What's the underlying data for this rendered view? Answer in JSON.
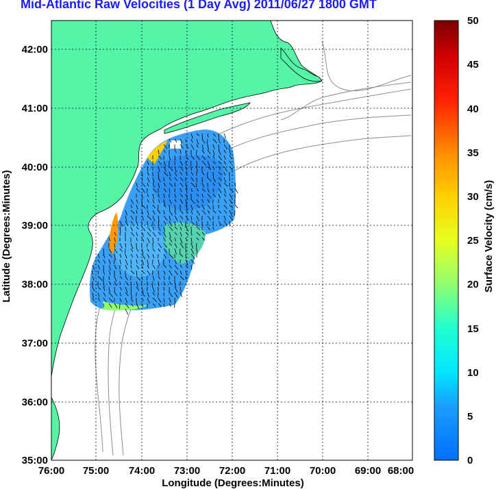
{
  "title": "Mid-Atlantic Raw Velocities (1 Day Avg) 2011/06/27 1800 GMT",
  "map": {
    "xlabel": "Longitude (Degrees:Minutes)",
    "ylabel": "Latitude (Degrees:Minutes)",
    "lon_range": [
      -76,
      -68
    ],
    "lat_range": [
      35,
      42.5
    ],
    "x_ticks": [
      {
        "value": -76,
        "label": "76:00"
      },
      {
        "value": -75,
        "label": "75:00"
      },
      {
        "value": -74,
        "label": "74:00"
      },
      {
        "value": -73,
        "label": "73:00"
      },
      {
        "value": -72,
        "label": "72:00"
      },
      {
        "value": -71,
        "label": "71:00"
      },
      {
        "value": -70,
        "label": "70:00"
      },
      {
        "value": -69,
        "label": "69:00"
      },
      {
        "value": -68,
        "label": "68:00"
      }
    ],
    "y_ticks": [
      {
        "value": 35,
        "label": "35:00"
      },
      {
        "value": 36,
        "label": "36:00"
      },
      {
        "value": 37,
        "label": "37:00"
      },
      {
        "value": 38,
        "label": "38:00"
      },
      {
        "value": 39,
        "label": "39:00"
      },
      {
        "value": 40,
        "label": "40:00"
      },
      {
        "value": 41,
        "label": "41:00"
      },
      {
        "value": 42,
        "label": "42:00"
      }
    ],
    "grid": "dotted",
    "land_color": "#55f5a8",
    "isobath_color": "#8c8c8c"
  },
  "colorbar": {
    "label": "Surface Velocity (cm/s)",
    "min": 0,
    "max": 50,
    "ticks": [
      {
        "value": 0,
        "label": "0"
      },
      {
        "value": 5,
        "label": "5"
      },
      {
        "value": 10,
        "label": "10"
      },
      {
        "value": 15,
        "label": "15"
      },
      {
        "value": 20,
        "label": "20"
      },
      {
        "value": 25,
        "label": "25"
      },
      {
        "value": 30,
        "label": "30"
      },
      {
        "value": 35,
        "label": "35"
      },
      {
        "value": 40,
        "label": "40"
      },
      {
        "value": 45,
        "label": "45"
      },
      {
        "value": 50,
        "label": "50"
      }
    ],
    "colormap": [
      "#0064ff",
      "#00ffff",
      "#ffff00",
      "#ff0000",
      "#800000"
    ]
  }
}
